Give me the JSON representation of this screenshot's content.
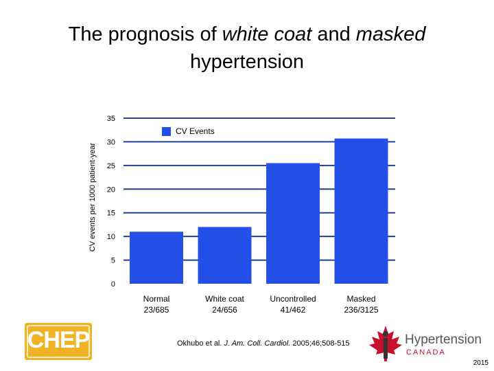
{
  "title": {
    "part1": "The prognosis of ",
    "em1": "white coat",
    "part2": " and ",
    "em2": "masked",
    "line2": "hypertension"
  },
  "chart_data": {
    "type": "bar",
    "title": "The prognosis of white coat and masked hypertension",
    "ylabel": "CV events per 1000 patient-year",
    "xlabel": "",
    "ylim": [
      0,
      35
    ],
    "yticks": [
      0,
      5,
      10,
      15,
      20,
      25,
      30,
      35
    ],
    "grid": true,
    "legend_position": "top-center",
    "categories": [
      {
        "line1": "Normal",
        "line2": "23/685"
      },
      {
        "line1": "White coat",
        "line2": "24/656"
      },
      {
        "line1": "Uncontrolled",
        "line2": "41/462"
      },
      {
        "line1": "Masked",
        "line2": "236/3125"
      }
    ],
    "series": [
      {
        "name": "CV Events",
        "color": "#2450e8",
        "values": [
          11,
          12,
          25.5,
          30.7
        ]
      }
    ]
  },
  "citation": {
    "prefix": "Okhubo et al. ",
    "journal": "J. Am. Coll. Cardiol.",
    "suffix": " 2005;46;508-515"
  },
  "logos": {
    "chep": "CHEP",
    "hypertension": "Hypertension",
    "canada": "CANADA",
    "chep_color": "#f0b323",
    "maple_color": "#c8102e"
  },
  "year": "2015"
}
